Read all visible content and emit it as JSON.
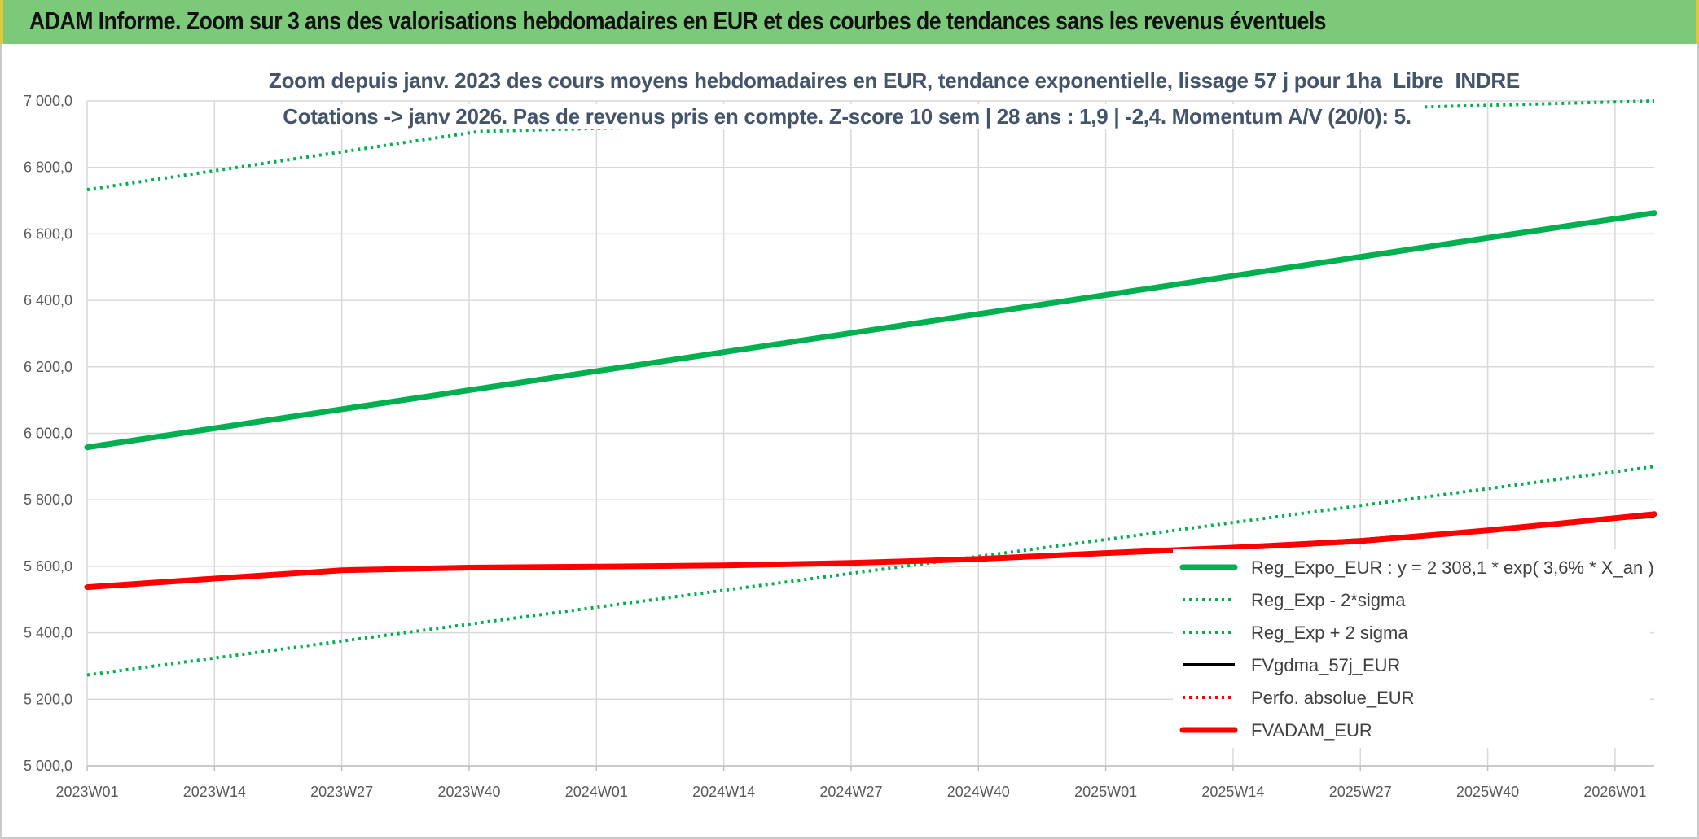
{
  "header": {
    "banner_title": "ADAM Informe. Zoom sur 3 ans des valorisations hebdomadaires en EUR et des courbes de tendances sans les revenus éventuels"
  },
  "chart_data": {
    "type": "line",
    "title_line1": "Zoom depuis janv. 2023 des cours moyens hebdomadaires en EUR, tendance exponentielle, lissage 57 j pour 1ha_Libre_INDRE",
    "title_line2": "Cotations -> janv 2026. Pas de revenus pris en compte. Z-score 10 sem | 28 ans : 1,9 | -2,4. Momentum A/V (20/0): 5.",
    "ylim": [
      5000,
      7000
    ],
    "y_ticks": [
      {
        "value": 5000,
        "label": "5 000,0"
      },
      {
        "value": 5200,
        "label": "5 200,0"
      },
      {
        "value": 5400,
        "label": "5 400,0"
      },
      {
        "value": 5600,
        "label": "5 600,0"
      },
      {
        "value": 5800,
        "label": "5 800,0"
      },
      {
        "value": 6000,
        "label": "6 000,0"
      },
      {
        "value": 6200,
        "label": "6 200,0"
      },
      {
        "value": 6400,
        "label": "6 400,0"
      },
      {
        "value": 6600,
        "label": "6 600,0"
      },
      {
        "value": 6800,
        "label": "6 800,0"
      },
      {
        "value": 7000,
        "label": "7 000,0"
      }
    ],
    "x_ticks": [
      "2023W01",
      "2023W14",
      "2023W27",
      "2023W40",
      "2024W01",
      "2024W14",
      "2024W27",
      "2024W40",
      "2025W01",
      "2025W14",
      "2025W27",
      "2025W40",
      "2026W01"
    ],
    "x_range_weeks": 160,
    "grid": true,
    "legend_position": "bottom-right",
    "colors": {
      "green": "#00b050",
      "black": "#000000",
      "red": "#ff0000",
      "grid": "#d9d9d9"
    },
    "series": [
      {
        "name": "Reg_Expo_EUR : y = 2 308,1 * exp( 3,6% *  X_an )",
        "style": "solid-thick",
        "color": "#00b050",
        "points": [
          [
            0,
            5958
          ],
          [
            160,
            6663
          ]
        ]
      },
      {
        "name": "Reg_Exp - 2*sigma",
        "style": "dotted",
        "color": "#00b050",
        "points": [
          [
            0,
            5273
          ],
          [
            160,
            5900
          ]
        ]
      },
      {
        "name": "Reg_Exp + 2 sigma",
        "style": "dotted",
        "color": "#00b050",
        "points": [
          [
            0,
            6733
          ],
          [
            40,
            6908
          ],
          [
            160,
            7000
          ]
        ]
      },
      {
        "name": "FVgdma_57j_EUR",
        "style": "solid",
        "color": "#000000",
        "points": [
          [
            0,
            5537
          ],
          [
            13,
            5562
          ],
          [
            26,
            5585
          ],
          [
            39,
            5595
          ],
          [
            52,
            5598
          ],
          [
            65,
            5602
          ],
          [
            78,
            5608
          ],
          [
            91,
            5620
          ],
          [
            104,
            5638
          ],
          [
            117,
            5658
          ],
          [
            130,
            5680
          ],
          [
            143,
            5710
          ],
          [
            156,
            5743
          ],
          [
            160,
            5750
          ]
        ]
      },
      {
        "name": "Perfo. absolue_EUR",
        "style": "dotted",
        "color": "#ff0000",
        "points": [
          [
            0,
            5537
          ],
          [
            13,
            5563
          ],
          [
            26,
            5588
          ],
          [
            39,
            5596
          ],
          [
            52,
            5599
          ],
          [
            65,
            5603
          ],
          [
            78,
            5610
          ],
          [
            91,
            5622
          ],
          [
            104,
            5640
          ],
          [
            117,
            5656
          ],
          [
            130,
            5676
          ],
          [
            143,
            5708
          ],
          [
            156,
            5745
          ],
          [
            160,
            5757
          ]
        ]
      },
      {
        "name": "FVADAM_EUR",
        "style": "solid-thick",
        "color": "#ff0000",
        "points": [
          [
            0,
            5537
          ],
          [
            13,
            5563
          ],
          [
            26,
            5588
          ],
          [
            39,
            5596
          ],
          [
            52,
            5599
          ],
          [
            65,
            5603
          ],
          [
            78,
            5610
          ],
          [
            91,
            5622
          ],
          [
            104,
            5640
          ],
          [
            117,
            5656
          ],
          [
            130,
            5676
          ],
          [
            143,
            5708
          ],
          [
            156,
            5745
          ],
          [
            160,
            5757
          ]
        ]
      }
    ]
  }
}
